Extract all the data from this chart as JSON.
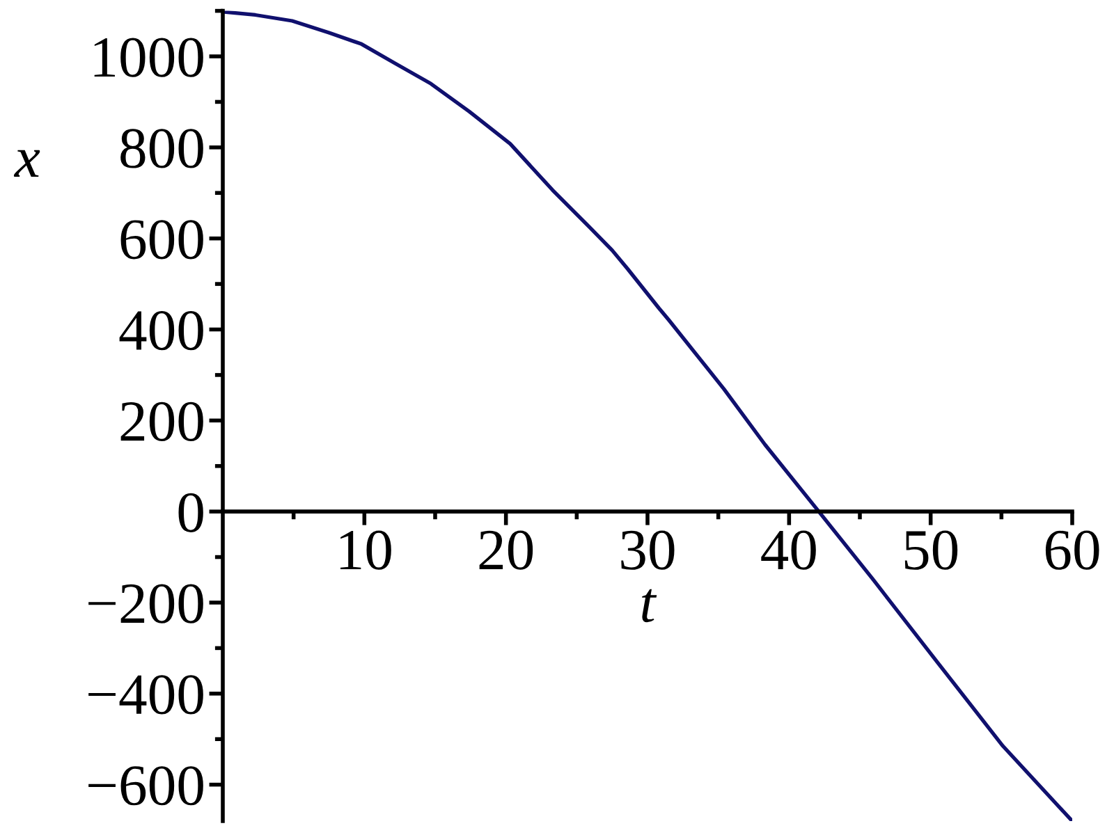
{
  "chart_data": {
    "type": "line",
    "xlabel": "t",
    "ylabel": "x",
    "x": [
      0,
      2.3,
      4.9,
      7.5,
      9.8,
      12.1,
      14.7,
      17.4,
      20.3,
      23.3,
      25.9,
      27.5,
      28.6,
      30.8,
      31.5,
      35.4,
      38.3,
      42.1,
      45.9,
      50.5,
      55.1,
      60
    ],
    "series": [
      {
        "color": "#10106e",
        "values": [
          1098,
          1091,
          1078,
          1052,
          1027,
          986,
          940,
          879,
          808,
          706,
          625,
          574,
          533,
          447,
          421,
          269,
          147,
          0,
          -148,
          -332,
          -515,
          -680
        ]
      }
    ],
    "xlim": [
      0,
      60
    ],
    "xticks": [
      10,
      20,
      30,
      40,
      50,
      60
    ],
    "ylim": [
      -680,
      1100
    ],
    "yticks": [
      {
        "value": -600,
        "label": "−600"
      },
      {
        "value": -400,
        "label": "−400"
      },
      {
        "value": -200,
        "label": "−200"
      },
      0,
      200,
      400,
      600,
      800,
      1000
    ],
    "grid": false,
    "legend": false,
    "marker": "none",
    "line_style": "solid"
  }
}
